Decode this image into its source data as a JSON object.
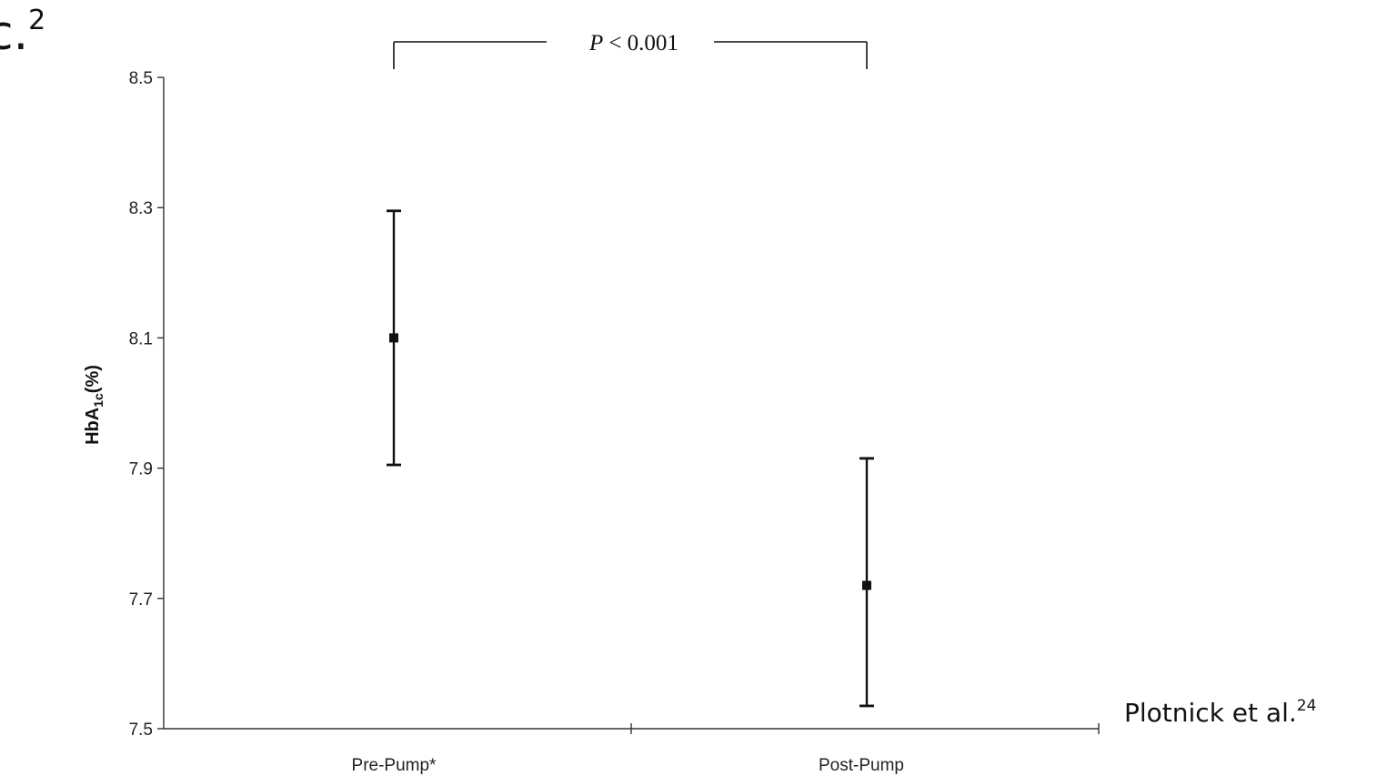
{
  "header_fragment": {
    "text": "c.",
    "superscript": "2"
  },
  "citation": {
    "text": "Plotnick et al.",
    "superscript": "24"
  },
  "significance": {
    "p_label": "P",
    "p_value": "< 0.001"
  },
  "chart_data": {
    "type": "scatter",
    "categories": [
      "Pre-Pump*",
      "Post-Pump"
    ],
    "series": [
      {
        "values": [
          8.1,
          7.72
        ],
        "error_low": [
          7.905,
          7.535
        ],
        "error_high": [
          8.295,
          7.915
        ]
      }
    ],
    "ylabel": {
      "main": "HbA",
      "subscript": "1c",
      "suffix": "(%)"
    },
    "xlabel": "",
    "ylim": [
      7.5,
      8.5
    ],
    "yticks": [
      "7.5",
      "7.7",
      "7.9",
      "8.1",
      "8.3",
      "8.5"
    ],
    "grid": false,
    "legend": "none",
    "colors": {
      "marker": "#111111",
      "axis": "#333333"
    }
  }
}
